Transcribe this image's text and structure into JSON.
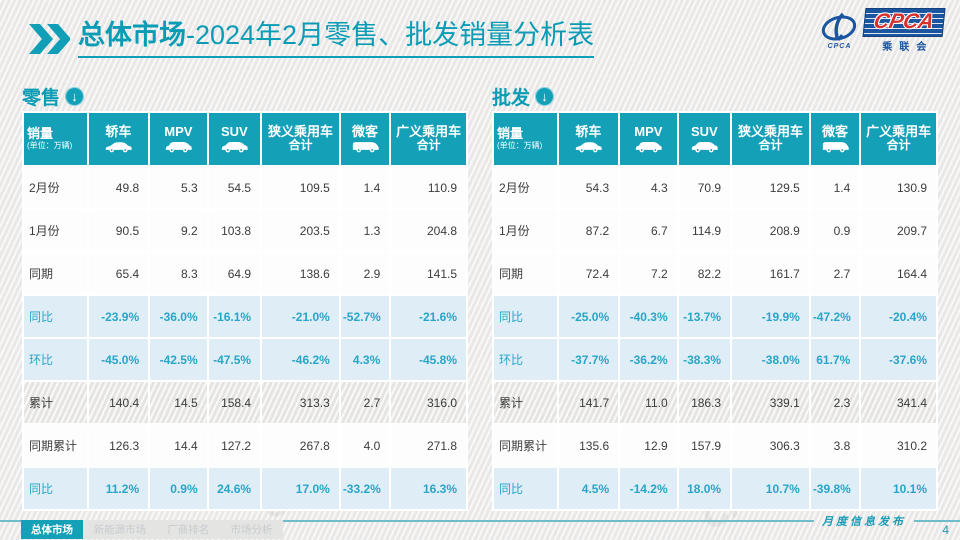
{
  "colors": {
    "teal_header": "#14a1b8",
    "teal_text": "#0a9cb5",
    "percent_text": "#28a5c8",
    "percent_row_bg": "#dfeef6",
    "logo_blue": "#1b55a0",
    "logo_red": "#d8302c"
  },
  "header": {
    "title_main": "总体市场",
    "title_rest": "-2024年2月零售、批发销量分析表",
    "logo": {
      "text": "CPCA",
      "subtext": "乘联会",
      "mark_text": "CPCA"
    }
  },
  "watermark": "CPCA 乘联会",
  "tables": [
    {
      "section": "零售",
      "corner": {
        "line1": "销量",
        "line2": "(单位：万辆)"
      },
      "columns": [
        {
          "label": "轿车",
          "icon": "sedan-icon"
        },
        {
          "label": "MPV",
          "icon": "mpv-icon"
        },
        {
          "label": "SUV",
          "icon": "suv-icon"
        },
        {
          "label": "狭义乘用车",
          "label2": "合计"
        },
        {
          "label": "微客",
          "icon": "microvan-icon"
        },
        {
          "label": "广义乘用车",
          "label2": "合计"
        }
      ],
      "rows": [
        {
          "label": "2月份",
          "style": "plain",
          "values": [
            "49.8",
            "5.3",
            "54.5",
            "109.5",
            "1.4",
            "110.9"
          ]
        },
        {
          "label": "1月份",
          "style": "plain",
          "values": [
            "90.5",
            "9.2",
            "103.8",
            "203.5",
            "1.3",
            "204.8"
          ]
        },
        {
          "label": "同期",
          "style": "plain",
          "values": [
            "65.4",
            "8.3",
            "64.9",
            "138.6",
            "2.9",
            "141.5"
          ]
        },
        {
          "label": "同比",
          "style": "percent",
          "values": [
            "-23.9%",
            "-36.0%",
            "-16.1%",
            "-21.0%",
            "-52.7%",
            "-21.6%"
          ]
        },
        {
          "label": "环比",
          "style": "percent",
          "values": [
            "-45.0%",
            "-42.5%",
            "-47.5%",
            "-46.2%",
            "4.3%",
            "-45.8%"
          ]
        },
        {
          "label": "累计",
          "style": "hatch",
          "values": [
            "140.4",
            "14.5",
            "158.4",
            "313.3",
            "2.7",
            "316.0"
          ]
        },
        {
          "label": "同期累计",
          "style": "plain",
          "values": [
            "126.3",
            "14.4",
            "127.2",
            "267.8",
            "4.0",
            "271.8"
          ]
        },
        {
          "label": "同比",
          "style": "percent",
          "values": [
            "11.2%",
            "0.9%",
            "24.6%",
            "17.0%",
            "-33.2%",
            "16.3%"
          ]
        }
      ]
    },
    {
      "section": "批发",
      "corner": {
        "line1": "销量",
        "line2": "(单位：万辆)"
      },
      "columns": [
        {
          "label": "轿车",
          "icon": "sedan-icon"
        },
        {
          "label": "MPV",
          "icon": "mpv-icon"
        },
        {
          "label": "SUV",
          "icon": "suv-icon"
        },
        {
          "label": "狭义乘用车",
          "label2": "合计"
        },
        {
          "label": "微客",
          "icon": "microvan-icon"
        },
        {
          "label": "广义乘用车",
          "label2": "合计"
        }
      ],
      "rows": [
        {
          "label": "2月份",
          "style": "plain",
          "values": [
            "54.3",
            "4.3",
            "70.9",
            "129.5",
            "1.4",
            "130.9"
          ]
        },
        {
          "label": "1月份",
          "style": "plain",
          "values": [
            "87.2",
            "6.7",
            "114.9",
            "208.9",
            "0.9",
            "209.7"
          ]
        },
        {
          "label": "同期",
          "style": "plain",
          "values": [
            "72.4",
            "7.2",
            "82.2",
            "161.7",
            "2.7",
            "164.4"
          ]
        },
        {
          "label": "同比",
          "style": "percent",
          "values": [
            "-25.0%",
            "-40.3%",
            "-13.7%",
            "-19.9%",
            "-47.2%",
            "-20.4%"
          ]
        },
        {
          "label": "环比",
          "style": "percent",
          "values": [
            "-37.7%",
            "-36.2%",
            "-38.3%",
            "-38.0%",
            "61.7%",
            "-37.6%"
          ]
        },
        {
          "label": "累计",
          "style": "hatch",
          "values": [
            "141.7",
            "11.0",
            "186.3",
            "339.1",
            "2.3",
            "341.4"
          ]
        },
        {
          "label": "同期累计",
          "style": "plain",
          "values": [
            "135.6",
            "12.9",
            "157.9",
            "306.3",
            "3.8",
            "310.2"
          ]
        },
        {
          "label": "同比",
          "style": "percent",
          "values": [
            "4.5%",
            "-14.2%",
            "18.0%",
            "10.7%",
            "-39.8%",
            "10.1%"
          ]
        }
      ]
    }
  ],
  "footer": {
    "tabs": [
      {
        "label": "总体市场",
        "active": true
      },
      {
        "label": "新能源市场",
        "active": false
      },
      {
        "label": "厂商排名",
        "active": false
      },
      {
        "label": "市场分析",
        "active": false
      }
    ],
    "release": "月度信息发布",
    "page": "4"
  }
}
